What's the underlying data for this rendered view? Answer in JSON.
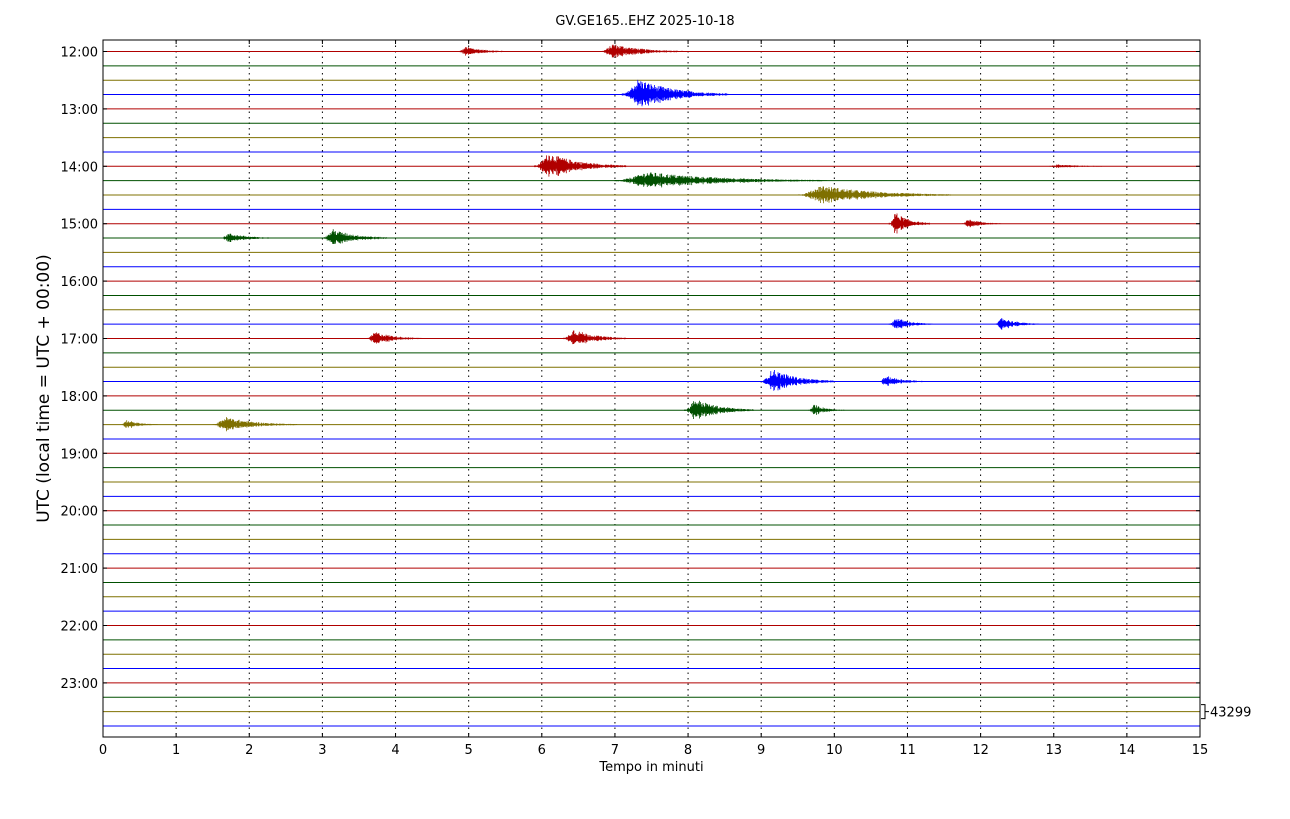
{
  "chart_data": {
    "type": "line",
    "title": "GV.GE165..EHZ 2025-10-18",
    "xlabel": "Tempo in minuti",
    "ylabel": "UTC (local time = UTC + 00:00)",
    "xlim": [
      0,
      15
    ],
    "x_ticks": [
      0,
      1,
      2,
      3,
      4,
      5,
      6,
      7,
      8,
      9,
      10,
      11,
      12,
      13,
      14,
      15
    ],
    "y_tick_labels": [
      "12:00",
      "13:00",
      "14:00",
      "15:00",
      "16:00",
      "17:00",
      "18:00",
      "19:00",
      "20:00",
      "21:00",
      "22:00",
      "23:00"
    ],
    "trace_interval_minutes": 15,
    "trace_count": 48,
    "start_time": "12:00",
    "trace_colors": [
      "#b00000",
      "#005000",
      "#7f7000",
      "#0000ff"
    ],
    "grid": "vertical dotted",
    "scale_label": "43299",
    "events": [
      {
        "trace": 0,
        "start": 4.85,
        "end": 5.6,
        "amplitude": 5
      },
      {
        "trace": 0,
        "start": 6.8,
        "end": 7.95,
        "amplitude": 8
      },
      {
        "trace": 3,
        "start": 7.1,
        "end": 8.55,
        "amplitude": 16
      },
      {
        "trace": 8,
        "start": 5.9,
        "end": 7.15,
        "amplitude": 14
      },
      {
        "trace": 8,
        "start": 12.9,
        "end": 13.9,
        "amplitude": 2
      },
      {
        "trace": 9,
        "start": 7.0,
        "end": 9.9,
        "amplitude": 9
      },
      {
        "trace": 10,
        "start": 9.5,
        "end": 11.6,
        "amplitude": 10
      },
      {
        "trace": 12,
        "start": 10.75,
        "end": 11.3,
        "amplitude": 12
      },
      {
        "trace": 12,
        "start": 11.75,
        "end": 12.3,
        "amplitude": 5
      },
      {
        "trace": 13,
        "start": 1.6,
        "end": 2.4,
        "amplitude": 5
      },
      {
        "trace": 13,
        "start": 3.0,
        "end": 3.95,
        "amplitude": 9
      },
      {
        "trace": 19,
        "start": 10.75,
        "end": 11.35,
        "amplitude": 7
      },
      {
        "trace": 19,
        "start": 12.2,
        "end": 12.8,
        "amplitude": 7
      },
      {
        "trace": 20,
        "start": 3.6,
        "end": 4.4,
        "amplitude": 7
      },
      {
        "trace": 20,
        "start": 6.3,
        "end": 7.15,
        "amplitude": 10
      },
      {
        "trace": 23,
        "start": 9.0,
        "end": 10.0,
        "amplitude": 13
      },
      {
        "trace": 23,
        "start": 10.6,
        "end": 11.3,
        "amplitude": 6
      },
      {
        "trace": 25,
        "start": 7.95,
        "end": 8.9,
        "amplitude": 12
      },
      {
        "trace": 25,
        "start": 9.65,
        "end": 10.15,
        "amplitude": 6
      },
      {
        "trace": 26,
        "start": 0.25,
        "end": 0.75,
        "amplitude": 5
      },
      {
        "trace": 26,
        "start": 1.5,
        "end": 2.65,
        "amplitude": 8
      }
    ]
  }
}
